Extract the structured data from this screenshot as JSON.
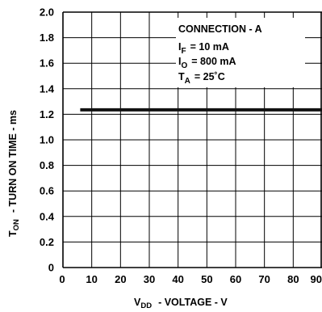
{
  "chart_data": {
    "type": "line",
    "x": [
      6,
      90
    ],
    "series": [
      {
        "values": [
          1.235,
          1.235
        ]
      }
    ],
    "xlim": [
      0,
      90
    ],
    "ylim": [
      0,
      2.0
    ],
    "x_ticks": [
      "0",
      "10",
      "20",
      "30",
      "40",
      "50",
      "60",
      "70",
      "80",
      "90"
    ],
    "y_ticks": [
      "0",
      "0.2",
      "0.4",
      "0.6",
      "0.8",
      "1.0",
      "1.2",
      "1.4",
      "1.6",
      "1.8",
      "2.0"
    ],
    "xlabel": {
      "main": "V",
      "sub": "DD",
      "rest": "- VOLTAGE - V"
    },
    "ylabel": {
      "main": "T",
      "sub": "ON",
      "rest": "- TURN ON TIME - ms"
    },
    "grid": true,
    "annotations": {
      "connection": "CONNECTION - A",
      "if": {
        "main": "I",
        "sub": "F",
        "rest": "= 10 mA"
      },
      "io": {
        "main": "I",
        "sub": "O",
        "rest": "= 800 mA"
      },
      "ta": {
        "main": "T",
        "sub": "A",
        "rest": "= 25˚C"
      }
    },
    "colors": {
      "line": "#111111",
      "grid": "#000000",
      "background": "#ffffff"
    }
  }
}
